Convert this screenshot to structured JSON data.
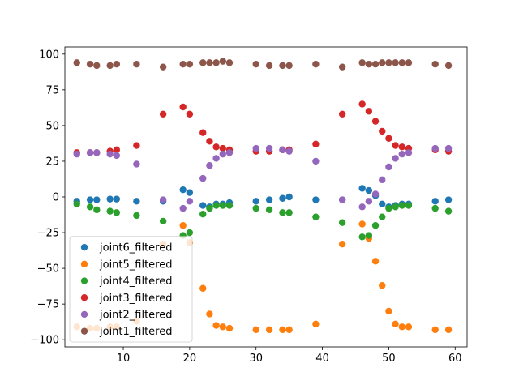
{
  "chart_data": {
    "type": "scatter",
    "title": "",
    "xlabel": "",
    "ylabel": "",
    "xlim": [
      1.2,
      61.8
    ],
    "ylim": [
      -105,
      105
    ],
    "xticks": [
      10,
      20,
      30,
      40,
      50,
      60
    ],
    "yticks": [
      -100,
      -75,
      -50,
      -25,
      0,
      25,
      50,
      75,
      100
    ],
    "grid": false,
    "legend_position": "lower left",
    "series": [
      {
        "name": "joint6_filtered",
        "color": "#1f77b4",
        "x": [
          3,
          5,
          6,
          8,
          9,
          12,
          16,
          19,
          20,
          22,
          23,
          24,
          25,
          26,
          30,
          32,
          34,
          35,
          39,
          43,
          46,
          47,
          48,
          49,
          50,
          51,
          52,
          53,
          57,
          59
        ],
        "y": [
          -3,
          -2,
          -2,
          -1.5,
          -1.5,
          -3,
          -3,
          5,
          3,
          -6,
          -7,
          -5,
          -5,
          -4,
          -3,
          -2,
          -1,
          0,
          -2,
          -2,
          6,
          4.5,
          1,
          -5,
          -7,
          -6,
          -5,
          -5,
          -3,
          -2
        ]
      },
      {
        "name": "joint5_filtered",
        "color": "#ff7f0e",
        "x": [
          3,
          5,
          6,
          8,
          9,
          12,
          16,
          19,
          20,
          22,
          23,
          24,
          25,
          26,
          30,
          32,
          34,
          35,
          39,
          43,
          46,
          47,
          48,
          49,
          50,
          51,
          52,
          53,
          57,
          59
        ],
        "y": [
          -91,
          -92,
          -92,
          -91,
          -91,
          -87,
          -33,
          -20,
          -32,
          -64,
          -82,
          -90,
          -91,
          -92,
          -93,
          -93,
          -93,
          -93,
          -89,
          -33,
          -19,
          -29,
          -45,
          -62,
          -80,
          -89,
          -91,
          -91,
          -93,
          -93
        ]
      },
      {
        "name": "joint4_filtered",
        "color": "#2ca02c",
        "x": [
          3,
          5,
          6,
          8,
          9,
          12,
          16,
          19,
          20,
          22,
          23,
          24,
          25,
          26,
          30,
          32,
          34,
          35,
          39,
          43,
          46,
          47,
          48,
          49,
          50,
          51,
          52,
          53,
          57,
          59
        ],
        "y": [
          -5,
          -7,
          -9,
          -10,
          -11,
          -13,
          -17,
          -27,
          -25,
          -12,
          -8,
          -6,
          -6,
          -6,
          -8,
          -9,
          -11,
          -11,
          -14,
          -18,
          -28,
          -27,
          -20,
          -14,
          -8,
          -7,
          -6,
          -6,
          -8,
          -10
        ]
      },
      {
        "name": "joint3_filtered",
        "color": "#d62728",
        "x": [
          3,
          5,
          6,
          8,
          9,
          12,
          16,
          19,
          20,
          22,
          23,
          24,
          25,
          26,
          30,
          32,
          34,
          35,
          39,
          43,
          46,
          47,
          48,
          49,
          50,
          51,
          52,
          53,
          57,
          59
        ],
        "y": [
          31,
          31,
          31,
          32,
          33,
          36,
          58,
          63,
          58,
          45,
          39,
          35,
          34,
          33,
          32,
          32,
          33,
          33,
          37,
          58,
          65,
          60,
          53,
          46,
          41,
          36,
          35,
          34,
          33,
          32
        ]
      },
      {
        "name": "joint2_filtered",
        "color": "#9467bd",
        "x": [
          3,
          5,
          6,
          8,
          9,
          12,
          16,
          19,
          20,
          22,
          23,
          24,
          25,
          26,
          30,
          32,
          34,
          35,
          39,
          43,
          46,
          47,
          48,
          49,
          50,
          51,
          52,
          53,
          57,
          59
        ],
        "y": [
          30,
          31,
          31,
          30,
          29,
          23,
          -2,
          -8,
          -3,
          13,
          22,
          27,
          30,
          31,
          34,
          34,
          33,
          32,
          25,
          -2,
          -7,
          -3,
          2,
          12,
          21,
          27,
          30,
          31,
          34,
          34
        ]
      },
      {
        "name": "joint1_filtered",
        "color": "#8c564b",
        "x": [
          3,
          5,
          6,
          8,
          9,
          12,
          16,
          19,
          20,
          22,
          23,
          24,
          25,
          26,
          30,
          32,
          34,
          35,
          39,
          43,
          46,
          47,
          48,
          49,
          50,
          51,
          52,
          53,
          57,
          59
        ],
        "y": [
          94,
          93,
          92,
          92,
          93,
          93,
          91,
          93,
          93,
          94,
          94,
          94,
          95,
          94,
          93,
          92,
          92,
          92,
          93,
          91,
          94,
          93,
          93,
          94,
          94,
          94,
          94,
          94,
          93,
          92
        ]
      }
    ]
  }
}
